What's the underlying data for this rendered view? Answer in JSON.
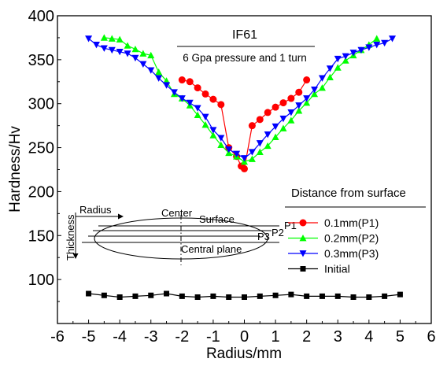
{
  "chart_data": {
    "type": "line",
    "title": "IF61",
    "subtitle": "6 Gpa pressure and 1 turn",
    "xlabel": "Radius/mm",
    "ylabel": "Hardness/Hv",
    "xlim": [
      -6,
      6
    ],
    "ylim": [
      50,
      400
    ],
    "xticks": [
      "-6",
      "-5",
      "-4",
      "-3",
      "-2",
      "-1",
      "0",
      "1",
      "2",
      "3",
      "4",
      "5",
      "6"
    ],
    "yticks": [
      "100",
      "150",
      "200",
      "250",
      "300",
      "350",
      "400"
    ],
    "grid": false,
    "legend": {
      "title": "Distance from surface",
      "placement": "bottom-right"
    },
    "series": [
      {
        "name": "0.1mm(P1)",
        "color": "#ff0000",
        "marker": "circle",
        "points": [
          [
            -2.0,
            327
          ],
          [
            -1.75,
            325
          ],
          [
            -1.5,
            318
          ],
          [
            -1.25,
            311
          ],
          [
            -1.0,
            305
          ],
          [
            -0.75,
            299
          ],
          [
            -0.5,
            250
          ],
          [
            -0.25,
            240
          ],
          [
            -0.1,
            229
          ],
          [
            0.0,
            226
          ],
          [
            0.25,
            275
          ],
          [
            0.5,
            282
          ],
          [
            0.75,
            290
          ],
          [
            1.0,
            296
          ],
          [
            1.25,
            301
          ],
          [
            1.5,
            306
          ],
          [
            1.75,
            313
          ],
          [
            2.0,
            327
          ]
        ]
      },
      {
        "name": "0.2mm(P2)",
        "color": "#00ff00",
        "marker": "triangle-up",
        "points": [
          [
            -4.5,
            375
          ],
          [
            -4.25,
            374
          ],
          [
            -4.0,
            373
          ],
          [
            -3.75,
            366
          ],
          [
            -3.5,
            362
          ],
          [
            -3.25,
            357
          ],
          [
            -3.0,
            355
          ],
          [
            -2.75,
            336
          ],
          [
            -2.5,
            326
          ],
          [
            -2.25,
            311
          ],
          [
            -2.0,
            306
          ],
          [
            -1.75,
            298
          ],
          [
            -1.5,
            287
          ],
          [
            -1.25,
            276
          ],
          [
            -1.0,
            264
          ],
          [
            -0.75,
            253
          ],
          [
            -0.5,
            244
          ],
          [
            -0.25,
            240
          ],
          [
            0.0,
            234
          ],
          [
            0.25,
            237
          ],
          [
            0.5,
            245
          ],
          [
            0.75,
            252
          ],
          [
            1.0,
            262
          ],
          [
            1.25,
            272
          ],
          [
            1.5,
            281
          ],
          [
            1.75,
            292
          ],
          [
            2.0,
            301
          ],
          [
            2.25,
            311
          ],
          [
            2.5,
            318
          ],
          [
            2.75,
            330
          ],
          [
            3.0,
            341
          ],
          [
            3.25,
            349
          ],
          [
            3.5,
            355
          ],
          [
            3.75,
            361
          ],
          [
            4.0,
            367
          ],
          [
            4.25,
            374
          ]
        ]
      },
      {
        "name": "0.3mm(P3)",
        "color": "#0000ff",
        "marker": "triangle-down",
        "points": [
          [
            -5.0,
            374
          ],
          [
            -4.75,
            367
          ],
          [
            -4.5,
            363
          ],
          [
            -4.25,
            361
          ],
          [
            -4.0,
            359
          ],
          [
            -3.75,
            357
          ],
          [
            -3.5,
            352
          ],
          [
            -3.25,
            345
          ],
          [
            -3.0,
            338
          ],
          [
            -2.75,
            329
          ],
          [
            -2.5,
            321
          ],
          [
            -2.25,
            313
          ],
          [
            -2.0,
            306
          ],
          [
            -1.75,
            301
          ],
          [
            -1.5,
            295
          ],
          [
            -1.25,
            285
          ],
          [
            -1.0,
            270
          ],
          [
            -0.75,
            261
          ],
          [
            -0.5,
            248
          ],
          [
            -0.25,
            243
          ],
          [
            0.0,
            238
          ],
          [
            0.25,
            245
          ],
          [
            0.5,
            255
          ],
          [
            0.75,
            265
          ],
          [
            1.0,
            274
          ],
          [
            1.25,
            283
          ],
          [
            1.5,
            290
          ],
          [
            1.75,
            298
          ],
          [
            2.0,
            306
          ],
          [
            2.25,
            316
          ],
          [
            2.5,
            329
          ],
          [
            2.75,
            340
          ],
          [
            3.0,
            351
          ],
          [
            3.25,
            354
          ],
          [
            3.5,
            358
          ],
          [
            3.75,
            361
          ],
          [
            4.0,
            364
          ],
          [
            4.25,
            367
          ],
          [
            4.5,
            369
          ],
          [
            4.75,
            374
          ]
        ]
      },
      {
        "name": "Initial",
        "color": "#000000",
        "marker": "square",
        "points": [
          [
            -5.0,
            84
          ],
          [
            -4.5,
            82
          ],
          [
            -4.0,
            80
          ],
          [
            -3.5,
            81
          ],
          [
            -3.0,
            82
          ],
          [
            -2.5,
            84
          ],
          [
            -2.0,
            81
          ],
          [
            -1.5,
            80
          ],
          [
            -1.0,
            81
          ],
          [
            -0.5,
            80
          ],
          [
            0.0,
            80
          ],
          [
            0.5,
            81
          ],
          [
            1.0,
            82
          ],
          [
            1.5,
            83
          ],
          [
            2.0,
            81
          ],
          [
            2.5,
            81
          ],
          [
            3.0,
            81
          ],
          [
            3.5,
            80
          ],
          [
            4.0,
            80
          ],
          [
            4.5,
            81
          ],
          [
            5.0,
            83
          ]
        ]
      }
    ],
    "schematic": {
      "radius_label": "Radius",
      "thickness_label": "Thickness",
      "center_label": "Center",
      "surface_label": "Surface",
      "central_plane_label": "Central plane",
      "p1_label": "P1",
      "p2_label": "P2",
      "p3_label": "P3"
    }
  }
}
